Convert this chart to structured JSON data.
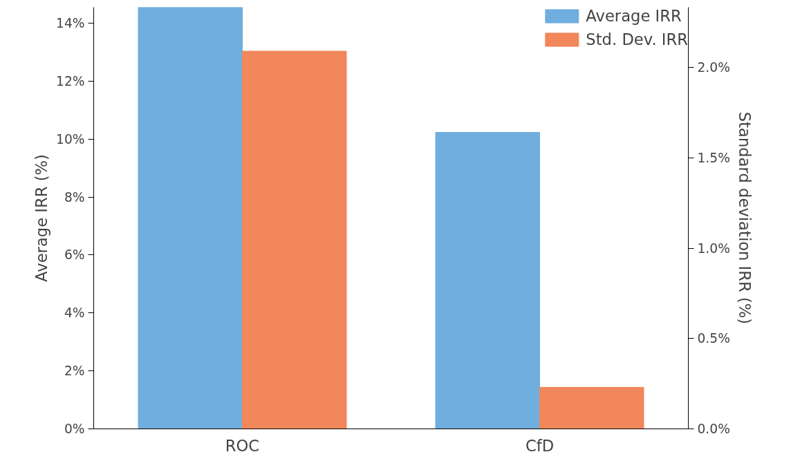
{
  "chart_data": {
    "type": "bar",
    "categories": [
      "ROC",
      "CfD"
    ],
    "ylabel": "Average IRR (%)",
    "y2label": "Standard deviation IRR (%)",
    "series": [
      {
        "name": "Average IRR",
        "color": "#6faede",
        "values": [
          14.55,
          10.23
        ]
      },
      {
        "name": "Std. Dev. IRR",
        "color": "#f1875a",
        "values": [
          2.09,
          0.23
        ],
        "axis": "y2"
      }
    ],
    "ylim": [
      0,
      14.55
    ],
    "yticks": [
      {
        "value": 0,
        "label": "0%"
      },
      {
        "value": 2,
        "label": "2%"
      },
      {
        "value": 4,
        "label": "4%"
      },
      {
        "value": 6,
        "label": "6%"
      },
      {
        "value": 8,
        "label": "8%"
      },
      {
        "value": 10,
        "label": "10%"
      },
      {
        "value": 12,
        "label": "12%"
      },
      {
        "value": 14,
        "label": "14%"
      }
    ],
    "y2lim": [
      0,
      2.333
    ],
    "y2ticks": [
      {
        "value": 0,
        "label": "0.0%"
      },
      {
        "value": 0.5,
        "label": "0.5%"
      },
      {
        "value": 1.0,
        "label": "1.0%"
      },
      {
        "value": 1.5,
        "label": "1.5%"
      },
      {
        "value": 2.0,
        "label": "2.0%"
      }
    ],
    "legend": "top right",
    "grid": false
  }
}
